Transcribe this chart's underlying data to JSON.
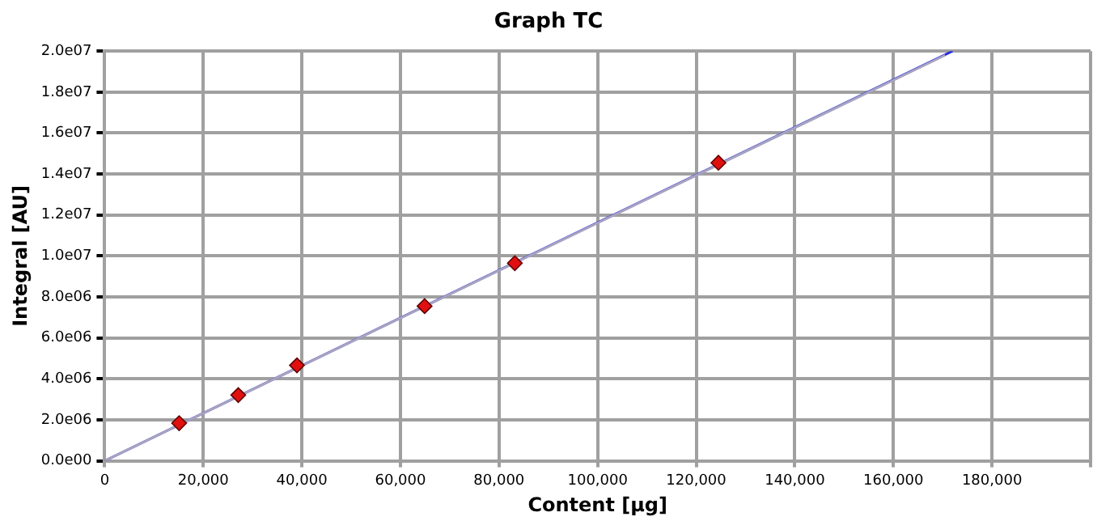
{
  "chart_data": {
    "type": "scatter",
    "title": "Graph TC",
    "xlabel": "Content [µg]",
    "ylabel": "Integral [AU]",
    "xlim": [
      0,
      200000
    ],
    "xticks": [
      {
        "value": 0,
        "label": "0"
      },
      {
        "value": 20000,
        "label": "20,000"
      },
      {
        "value": 40000,
        "label": "40,000"
      },
      {
        "value": 60000,
        "label": "60,000"
      },
      {
        "value": 80000,
        "label": "80,000"
      },
      {
        "value": 100000,
        "label": "100,000"
      },
      {
        "value": 120000,
        "label": "120,000"
      },
      {
        "value": 140000,
        "label": "140,000"
      },
      {
        "value": 160000,
        "label": "160,000"
      },
      {
        "value": 180000,
        "label": "180,000"
      },
      {
        "value": 200000,
        "label": null
      }
    ],
    "ylim": [
      0,
      20000000
    ],
    "yticks": [
      {
        "value": 0,
        "label": "0.0e00"
      },
      {
        "value": 2000000,
        "label": "2.0e06"
      },
      {
        "value": 4000000,
        "label": "4.0e06"
      },
      {
        "value": 6000000,
        "label": "6.0e06"
      },
      {
        "value": 8000000,
        "label": "8.0e06"
      },
      {
        "value": 10000000,
        "label": "1.0e07"
      },
      {
        "value": 12000000,
        "label": "1.2e07"
      },
      {
        "value": 14000000,
        "label": "1.4e07"
      },
      {
        "value": 16000000,
        "label": "1.6e07"
      },
      {
        "value": 18000000,
        "label": "1.8e07"
      },
      {
        "value": 20000000,
        "label": "2.0e07"
      }
    ],
    "grid": true,
    "legend": false,
    "series": [
      {
        "type": "line",
        "color": "#2a2ae0",
        "x": [
          0,
          172000
        ],
        "values": [
          0,
          20000000
        ],
        "marker": "none"
      },
      {
        "type": "line",
        "color": "#a8a4c0",
        "x": [
          0,
          170500
        ],
        "values": [
          0,
          19800000
        ],
        "marker": "none"
      },
      {
        "type": "scatter",
        "color": "#e01010",
        "marker": "diamond",
        "x": [
          15100,
          27100,
          39000,
          64900,
          83200,
          124500
        ],
        "values": [
          1840000,
          3210000,
          4660000,
          7550000,
          9650000,
          14550000
        ]
      }
    ]
  }
}
